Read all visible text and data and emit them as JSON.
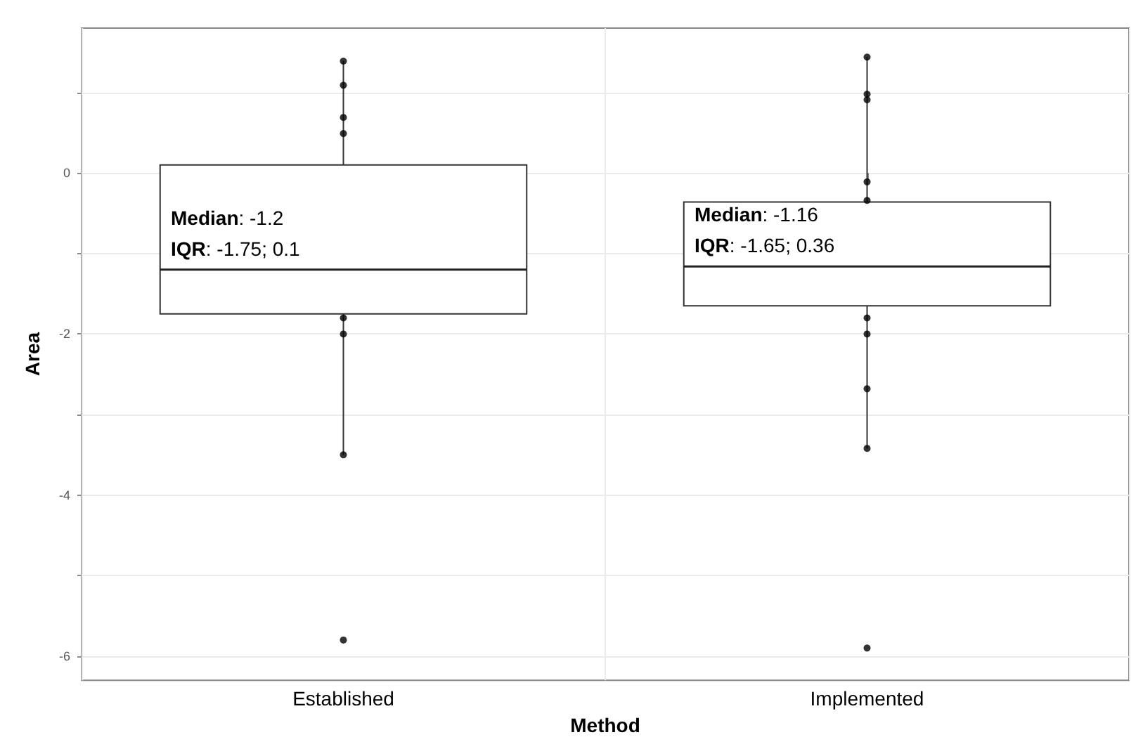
{
  "chart_data": {
    "type": "box",
    "xlabel": "Method",
    "ylabel": "Area",
    "categories": [
      "Established",
      "Implemented"
    ],
    "boxes": [
      {
        "low": -3.5,
        "q1": -1.75,
        "median": -1.2,
        "q3": 0.1,
        "high": 1.39
      },
      {
        "low": -3.42,
        "q1": -1.65,
        "median": -1.16,
        "q3": -0.36,
        "high": 1.44
      }
    ],
    "series": [
      {
        "type": "scatter",
        "color": "#000000",
        "x": [
          "Established",
          "Established",
          "Established",
          "Established",
          "Established",
          "Established",
          "Established",
          "Established",
          "Implemented",
          "Implemented",
          "Implemented",
          "Implemented",
          "Implemented",
          "Implemented",
          "Implemented",
          "Implemented",
          "Implemented",
          "Implemented"
        ],
        "values": [
          1.39,
          1.09,
          0.69,
          0.49,
          -1.8,
          -2.0,
          -3.5,
          -5.8,
          1.44,
          0.98,
          0.91,
          -0.11,
          -0.34,
          -1.8,
          -2.0,
          -2.68,
          -3.42,
          -5.9
        ]
      }
    ],
    "ylim": [
      -6.3,
      1.8
    ],
    "yticks": [
      {
        "value": -6,
        "label": "-6"
      },
      {
        "value": -5,
        "label": null
      },
      {
        "value": -4,
        "label": "-4"
      },
      {
        "value": -3,
        "label": null
      },
      {
        "value": -2,
        "label": "-2"
      },
      {
        "value": -1,
        "label": null
      },
      0,
      {
        "value": 1,
        "label": null
      }
    ],
    "grid": true,
    "marker": "circle",
    "annotations": [
      "Median: -1.2",
      "IQR: -1.75; 0.1",
      "Median: -1.16",
      "IQR: -1.65; 0.36"
    ]
  }
}
